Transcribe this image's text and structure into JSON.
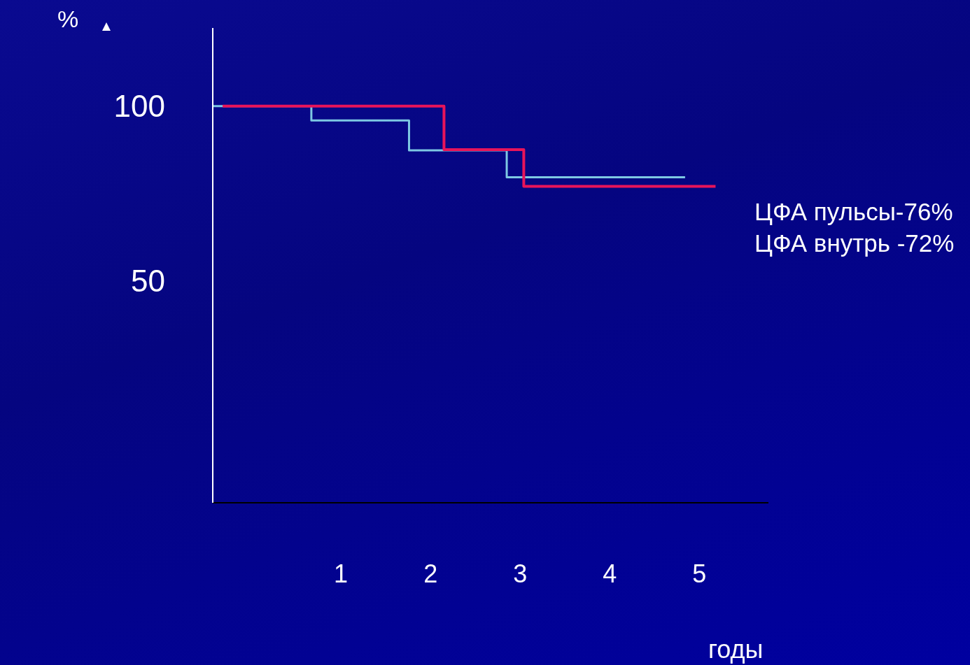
{
  "chart_data": {
    "type": "step",
    "xlabel": "годы",
    "ylabel": "%",
    "xlim": [
      -0.43,
      5.77
    ],
    "xticks": [
      1,
      2,
      3,
      4,
      5
    ],
    "ylim": [
      -13.7,
      122.4
    ],
    "yticks": [
      50,
      100
    ],
    "series": [
      {
        "color": "#7ec8e3",
        "x": [
          -0.43,
          0.67,
          1.76,
          2.85,
          4.84
        ],
        "values": [
          100,
          95.9,
          87.3,
          79.6,
          79.6
        ]
      },
      {
        "color": "#e8145a",
        "x": [
          -0.32,
          2.15,
          3.04,
          5.18
        ],
        "values": [
          100,
          87.5,
          77,
          77
        ]
      }
    ],
    "annotations": [
      "ЦФА пульсы-76%",
      "ЦФА внутрь -72%"
    ]
  }
}
